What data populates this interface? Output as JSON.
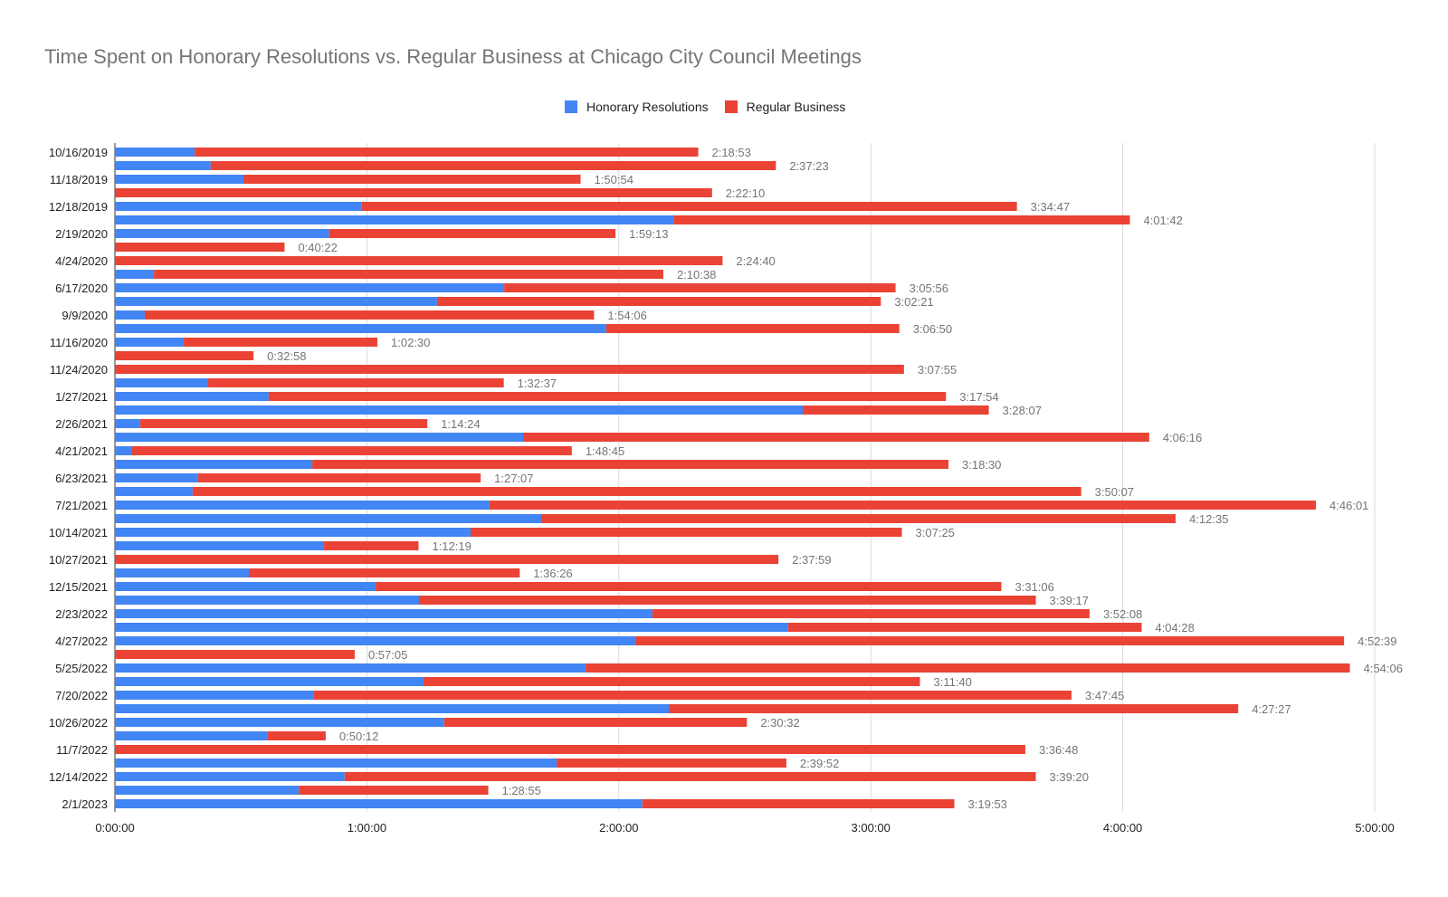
{
  "chart_data": {
    "type": "bar",
    "orientation": "horizontal",
    "stacked": true,
    "title": "Time Spent on Honorary Resolutions vs. Regular Business at Chicago City Council Meetings",
    "xlabel": "",
    "ylabel": "",
    "units": "minutes",
    "xlim": [
      0,
      300
    ],
    "x_ticks": [
      "0:00:00",
      "1:00:00",
      "2:00:00",
      "3:00:00",
      "4:00:00",
      "5:00:00"
    ],
    "legend_position": "top",
    "categories": [
      "10/16/2019",
      "",
      "11/18/2019",
      "",
      "12/18/2019",
      "",
      "2/19/2020",
      "",
      "4/24/2020",
      "",
      "6/17/2020",
      "",
      "9/9/2020",
      "",
      "11/16/2020",
      "",
      "11/24/2020",
      "",
      "1/27/2021",
      "",
      "2/26/2021",
      "",
      "4/21/2021",
      "",
      "6/23/2021",
      "",
      "7/21/2021",
      "",
      "10/14/2021",
      "",
      "10/27/2021",
      "",
      "12/15/2021",
      "",
      "2/23/2022",
      "",
      "4/27/2022",
      "",
      "5/25/2022",
      "",
      "7/20/2022",
      "",
      "10/26/2022",
      "",
      "11/7/2022",
      "",
      "12/14/2022",
      "",
      "2/1/2023"
    ],
    "series": [
      {
        "name": "Honorary Resolutions",
        "color": "#4285f4",
        "values": [
          19,
          22.8,
          30.6,
          0,
          58.8,
          133,
          51,
          0,
          0,
          9.3,
          92.7,
          76.7,
          7.1,
          117,
          16.4,
          0,
          0,
          22.2,
          36.6,
          163.8,
          6.0,
          97.2,
          4.1,
          47,
          19.8,
          18.5,
          89.2,
          101.5,
          84.7,
          49.8,
          0,
          31.9,
          62.1,
          72.4,
          128,
          160.3,
          123.9,
          0,
          112.1,
          73.5,
          47.4,
          131.9,
          78.4,
          36.4,
          0,
          105.2,
          54.7,
          43.8,
          125.6
        ]
      },
      {
        "name": "Regular Business",
        "color": "#ea4335",
        "values": [
          119.9,
          134.6,
          80.3,
          142.2,
          156.0,
          108.7,
          68.2,
          40.4,
          144.7,
          121.3,
          93.2,
          105.7,
          107.0,
          69.8,
          46.1,
          33.0,
          187.9,
          70.4,
          161.3,
          44.3,
          68.4,
          149.1,
          104.7,
          151.5,
          67.3,
          211.6,
          196.8,
          151.1,
          102.7,
          22.5,
          158.0,
          64.5,
          149.0,
          146.9,
          104.1,
          84.2,
          168.8,
          57.1,
          182.0,
          118.2,
          180.4,
          135.6,
          72.1,
          13.8,
          216.8,
          54.7,
          164.6,
          45.1,
          74.3
        ]
      }
    ],
    "total_labels": [
      "2:18:53",
      "2:37:23",
      "1:50:54",
      "2:22:10",
      "3:34:47",
      "4:01:42",
      "1:59:13",
      "0:40:22",
      "2:24:40",
      "2:10:38",
      "3:05:56",
      "3:02:21",
      "1:54:06",
      "3:06:50",
      "1:02:30",
      "0:32:58",
      "3:07:55",
      "1:32:37",
      "3:17:54",
      "3:28:07",
      "1:14:24",
      "4:06:16",
      "1:48:45",
      "3:18:30",
      "1:27:07",
      "3:50:07",
      "4:46:01",
      "4:12:35",
      "3:07:25",
      "1:12:19",
      "2:37:59",
      "1:36:26",
      "3:31:06",
      "3:39:17",
      "3:52:08",
      "4:04:28",
      "4:52:39",
      "0:57:05",
      "4:54:06",
      "3:11:40",
      "3:47:45",
      "4:27:27",
      "2:30:32",
      "0:50:12",
      "3:36:48",
      "2:39:52",
      "3:39:20",
      "1:28:55",
      "3:19:53"
    ]
  }
}
